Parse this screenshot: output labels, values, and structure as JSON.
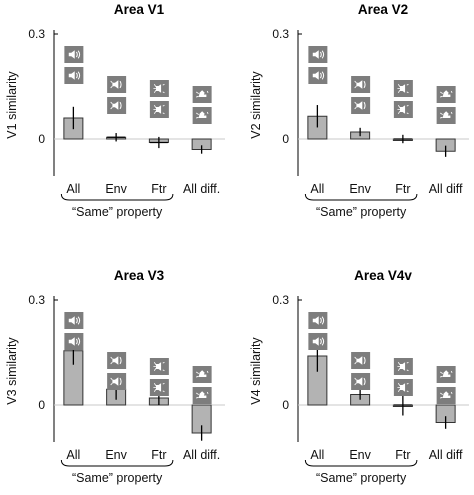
{
  "chart_data": [
    {
      "type": "bar",
      "title": "Area V1",
      "ylabel": "V1 similarity",
      "xlabel": "“Same” property",
      "categories": [
        "All",
        "Env",
        "Ftr",
        "All diff."
      ],
      "values": [
        0.06,
        0.005,
        -0.01,
        -0.03
      ],
      "errors": [
        0.032,
        0.012,
        0.016,
        0.012
      ],
      "yticks": [
        "0",
        "0.3"
      ],
      "ylim": [
        -0.1,
        0.33
      ]
    },
    {
      "type": "bar",
      "title": "Area V2",
      "ylabel": "V2 similarity",
      "xlabel": "“Same” property",
      "categories": [
        "All",
        "Env",
        "Ftr",
        "All diff"
      ],
      "values": [
        0.065,
        0.02,
        0.0,
        -0.035
      ],
      "errors": [
        0.032,
        0.012,
        0.012,
        0.016
      ],
      "yticks": [
        "0",
        "0.3"
      ],
      "ylim": [
        -0.1,
        0.33
      ]
    },
    {
      "type": "bar",
      "title": "Area V3",
      "ylabel": "V3 similarity",
      "xlabel": "“Same” property",
      "categories": [
        "All",
        "Env",
        "Ftr",
        "All diff."
      ],
      "values": [
        0.155,
        0.045,
        0.02,
        -0.08
      ],
      "errors": [
        0.04,
        0.03,
        0.02,
        0.022
      ],
      "yticks": [
        "0",
        "0.3"
      ],
      "ylim": [
        -0.1,
        0.33
      ]
    },
    {
      "type": "bar",
      "title": "Area V4v",
      "ylabel": "V4 similarity",
      "xlabel": "“Same” property",
      "categories": [
        "All",
        "Env",
        "Ftr",
        "All diff"
      ],
      "values": [
        0.14,
        0.03,
        0.0,
        -0.05
      ],
      "errors": [
        0.045,
        0.015,
        0.03,
        0.018
      ],
      "yticks": [
        "0",
        "0.3"
      ],
      "ylim": [
        -0.1,
        0.33
      ]
    }
  ],
  "colors": {
    "bar_fill": "#b3b3b3",
    "icon_fill": "#7d7d7d",
    "axis": "#000000"
  },
  "icons": [
    "speaker-same-icon",
    "speaker-envelope-icon",
    "speaker-feature-icon",
    "speaker-different-icon"
  ]
}
